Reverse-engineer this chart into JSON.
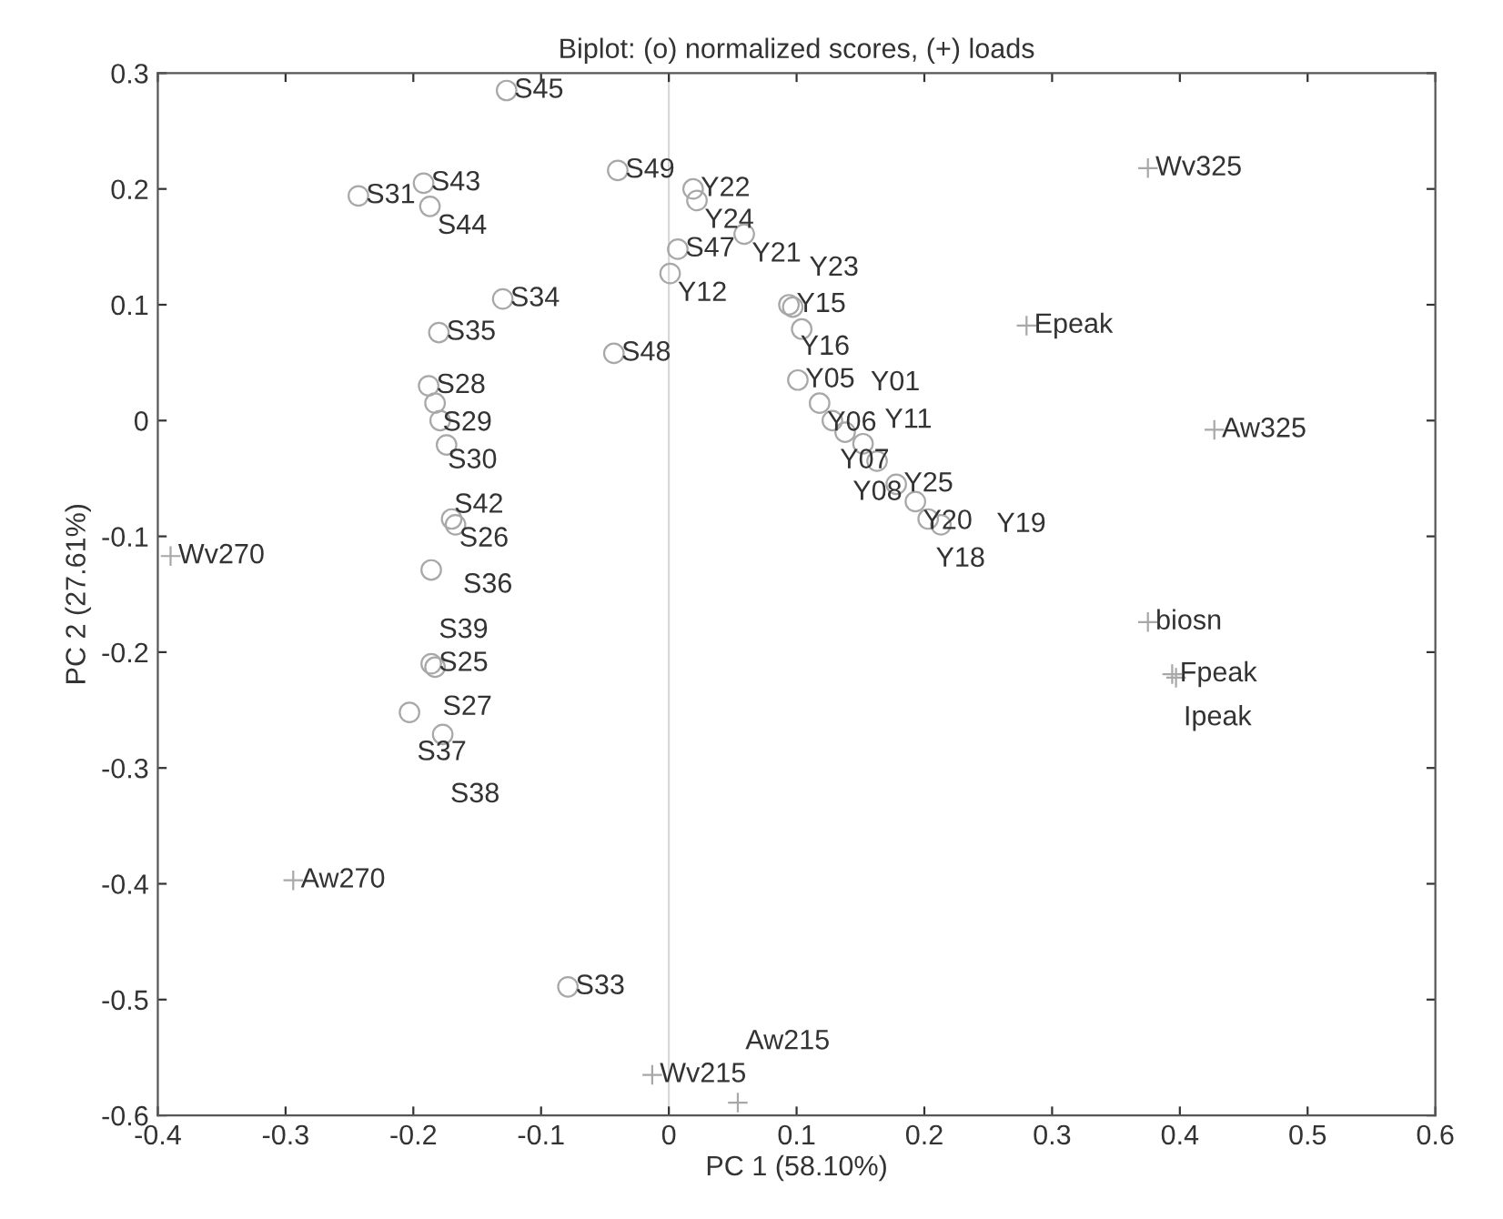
{
  "chart_data": {
    "type": "scatter",
    "title": "Biplot: (o) normalized scores, (+) loads",
    "xlabel": "PC 1 (58.10%)",
    "ylabel": "PC 2 (27.61%)",
    "xlim": [
      -0.4,
      0.6
    ],
    "xticks": [
      {
        "value": -0.4,
        "label": "-0.4"
      },
      {
        "value": -0.3,
        "label": "-0.3"
      },
      {
        "value": -0.2,
        "label": "-0.2"
      },
      {
        "value": -0.1,
        "label": "-0.1"
      },
      0,
      0.1,
      0.2,
      0.3,
      0.4,
      0.5,
      0.6
    ],
    "ylim": [
      -0.6,
      0.3
    ],
    "yticks": [
      {
        "value": -0.6,
        "label": "-0.6"
      },
      {
        "value": -0.5,
        "label": "-0.5"
      },
      {
        "value": -0.4,
        "label": "-0.4"
      },
      {
        "value": -0.3,
        "label": "-0.3"
      },
      {
        "value": -0.2,
        "label": "-0.2"
      },
      {
        "value": -0.1,
        "label": "-0.1"
      },
      0,
      0.1,
      0.2,
      0.3
    ],
    "grid": false,
    "legend": false,
    "ref_lines": [
      {
        "axis": "x",
        "value": 0,
        "label": null,
        "color": "#d8d8d8"
      }
    ],
    "series": [
      {
        "marker": "circle",
        "color": "#a8a8a8",
        "x": [
          -0.127,
          -0.243,
          -0.192,
          -0.187,
          -0.04,
          0.019,
          0.022,
          0.007,
          0.059,
          0.001,
          -0.13,
          -0.18,
          -0.043,
          0.094,
          0.097,
          0.104,
          -0.188,
          -0.183,
          -0.179,
          -0.174,
          -0.17,
          -0.167,
          -0.186,
          -0.186,
          -0.183,
          -0.203,
          -0.177,
          -0.079,
          0.101,
          0.118,
          0.128,
          0.138,
          0.152,
          0.163,
          0.178,
          0.193,
          0.203,
          0.213
        ],
        "values": [
          0.285,
          0.194,
          0.205,
          0.185,
          0.216,
          0.2,
          0.19,
          0.148,
          0.161,
          0.127,
          0.105,
          0.076,
          0.058,
          0.1,
          0.098,
          0.079,
          0.03,
          0.015,
          0.0,
          -0.021,
          -0.085,
          -0.09,
          -0.129,
          -0.21,
          -0.213,
          -0.252,
          -0.271,
          -0.489,
          0.035,
          0.015,
          0.0,
          -0.01,
          -0.02,
          -0.035,
          -0.055,
          -0.07,
          -0.085,
          -0.09
        ]
      },
      {
        "marker": "cross",
        "color": "#a8a8a8",
        "x": [
          0.375,
          0.28,
          0.427,
          0.375,
          0.394,
          0.397,
          -0.39,
          -0.294,
          -0.013,
          0.054
        ],
        "values": [
          0.218,
          0.082,
          -0.008,
          -0.174,
          -0.219,
          -0.222,
          -0.117,
          -0.397,
          -0.565,
          -0.589
        ]
      }
    ],
    "annotations": [
      {
        "text": "S45",
        "x": -0.127,
        "y": 0.285
      },
      {
        "text": "S31",
        "x": -0.243,
        "y": 0.194
      },
      {
        "text": "S43",
        "x": -0.192,
        "y": 0.205
      },
      {
        "text": "S44",
        "x": -0.187,
        "y": 0.185
      },
      {
        "text": "S49",
        "x": -0.04,
        "y": 0.216
      },
      {
        "text": "Y22",
        "x": 0.019,
        "y": 0.2
      },
      {
        "text": "Y24",
        "x": 0.022,
        "y": 0.19
      },
      {
        "text": "S47",
        "x": 0.007,
        "y": 0.148
      },
      {
        "text": "Y21",
        "x": 0.059,
        "y": 0.161
      },
      {
        "text": "Y12",
        "x": 0.001,
        "y": 0.127
      },
      {
        "text": "S34",
        "x": -0.13,
        "y": 0.105
      },
      {
        "text": "S35",
        "x": -0.18,
        "y": 0.076
      },
      {
        "text": "S48",
        "x": -0.043,
        "y": 0.058
      },
      {
        "text": "Y15",
        "x": 0.094,
        "y": 0.1
      },
      {
        "text": "Y16",
        "x": 0.097,
        "y": 0.098
      },
      {
        "text": "Y23",
        "x": 0.104,
        "y": 0.079
      },
      {
        "text": "S28",
        "x": -0.188,
        "y": 0.03
      },
      {
        "text": "S29",
        "x": -0.183,
        "y": 0.015
      },
      {
        "text": "S30",
        "x": -0.179,
        "y": 0.0
      },
      {
        "text": "S42",
        "x": -0.174,
        "y": -0.021
      },
      {
        "text": "S26",
        "x": -0.17,
        "y": -0.085
      },
      {
        "text": "S36",
        "x": -0.167,
        "y": -0.09
      },
      {
        "text": "S39",
        "x": -0.186,
        "y": -0.129
      },
      {
        "text": "S25",
        "x": -0.186,
        "y": -0.21
      },
      {
        "text": "S27",
        "x": -0.183,
        "y": -0.213
      },
      {
        "text": "S37",
        "x": -0.203,
        "y": -0.252
      },
      {
        "text": "S38",
        "x": -0.177,
        "y": -0.271
      },
      {
        "text": "S33",
        "x": -0.079,
        "y": -0.489
      },
      {
        "text": "Y05",
        "x": 0.101,
        "y": 0.035
      },
      {
        "text": "Y06",
        "x": 0.118,
        "y": 0.015
      },
      {
        "text": "Y07",
        "x": 0.128,
        "y": 0.0
      },
      {
        "text": "Y08",
        "x": 0.138,
        "y": -0.01
      },
      {
        "text": "Y01",
        "x": 0.152,
        "y": -0.02
      },
      {
        "text": "Y11",
        "x": 0.163,
        "y": -0.035
      },
      {
        "text": "Y25",
        "x": 0.178,
        "y": -0.055
      },
      {
        "text": "Y20",
        "x": 0.193,
        "y": -0.07
      },
      {
        "text": "Y18",
        "x": 0.203,
        "y": -0.085
      },
      {
        "text": "Y19",
        "x": 0.213,
        "y": -0.09
      },
      {
        "text": "Wv325",
        "x": 0.375,
        "y": 0.218
      },
      {
        "text": "Epeak",
        "x": 0.28,
        "y": 0.082
      },
      {
        "text": "Aw325",
        "x": 0.427,
        "y": -0.008
      },
      {
        "text": "biosn",
        "x": 0.375,
        "y": -0.174
      },
      {
        "text": "Fpeak",
        "x": 0.394,
        "y": -0.219
      },
      {
        "text": "Ipeak",
        "x": 0.397,
        "y": -0.222
      },
      {
        "text": "Wv270",
        "x": -0.39,
        "y": -0.117
      },
      {
        "text": "Aw270",
        "x": -0.294,
        "y": -0.397
      },
      {
        "text": "Wv215",
        "x": -0.013,
        "y": -0.565
      },
      {
        "text": "Aw215",
        "x": 0.054,
        "y": -0.589
      }
    ]
  }
}
